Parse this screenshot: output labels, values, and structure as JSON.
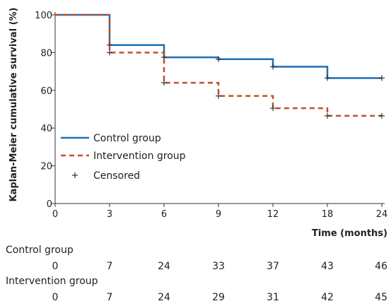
{
  "chart_data": {
    "type": "line",
    "title": "",
    "xlabel": "Time (months)",
    "ylabel": "Kaplan-Meier cumulative survival (%)",
    "xlim": [
      0,
      24
    ],
    "ylim": [
      0,
      100
    ],
    "x_ticks": [
      {
        "value": 0,
        "label": "0"
      },
      {
        "value": 3,
        "label": "3"
      },
      {
        "value": 6,
        "label": "6"
      },
      {
        "value": 9,
        "label": "9"
      },
      {
        "value": 12,
        "label": "12"
      },
      {
        "value": 18,
        "label": "18"
      },
      {
        "value": 24,
        "label": "24"
      }
    ],
    "y_ticks": [
      0,
      20,
      40,
      60,
      80,
      100
    ],
    "grid": false,
    "legend": {
      "placement": "left-middle",
      "entries": [
        "Control group",
        "Intervention group",
        "Censored"
      ]
    },
    "series": [
      {
        "name": "Control group",
        "color": "#1f6fb5",
        "line_style": "solid",
        "steps": [
          {
            "x": 0,
            "y": 100
          },
          {
            "x": 3,
            "y": 84
          },
          {
            "x": 6,
            "y": 77.5
          },
          {
            "x": 9,
            "y": 76.5
          },
          {
            "x": 12,
            "y": 72.5
          },
          {
            "x": 18,
            "y": 66.5
          },
          {
            "x": 24,
            "y": 66.5
          }
        ],
        "censored": [
          {
            "x": 3,
            "y": 84
          },
          {
            "x": 6,
            "y": 77.5
          },
          {
            "x": 9,
            "y": 76.5
          },
          {
            "x": 12,
            "y": 72.5
          },
          {
            "x": 18,
            "y": 66.5
          },
          {
            "x": 24,
            "y": 66.5
          }
        ]
      },
      {
        "name": "Intervention group",
        "color": "#c0502a",
        "line_style": "dashed",
        "steps": [
          {
            "x": 0,
            "y": 100
          },
          {
            "x": 3,
            "y": 80
          },
          {
            "x": 6,
            "y": 64
          },
          {
            "x": 9,
            "y": 57
          },
          {
            "x": 12,
            "y": 50.5
          },
          {
            "x": 18,
            "y": 46.5
          },
          {
            "x": 24,
            "y": 46.5
          }
        ],
        "censored": [
          {
            "x": 3,
            "y": 80
          },
          {
            "x": 6,
            "y": 64
          },
          {
            "x": 9,
            "y": 57
          },
          {
            "x": 12,
            "y": 50.5
          },
          {
            "x": 18,
            "y": 46.5
          },
          {
            "x": 24,
            "y": 46.5
          }
        ]
      }
    ],
    "censor_color": "#333333"
  },
  "risk_table": {
    "groups": [
      {
        "label": "Control group",
        "values": [
          "0",
          "7",
          "24",
          "33",
          "37",
          "43",
          "46"
        ]
      },
      {
        "label": "Intervention group",
        "values": [
          "0",
          "7",
          "24",
          "29",
          "31",
          "42",
          "45"
        ]
      }
    ]
  }
}
